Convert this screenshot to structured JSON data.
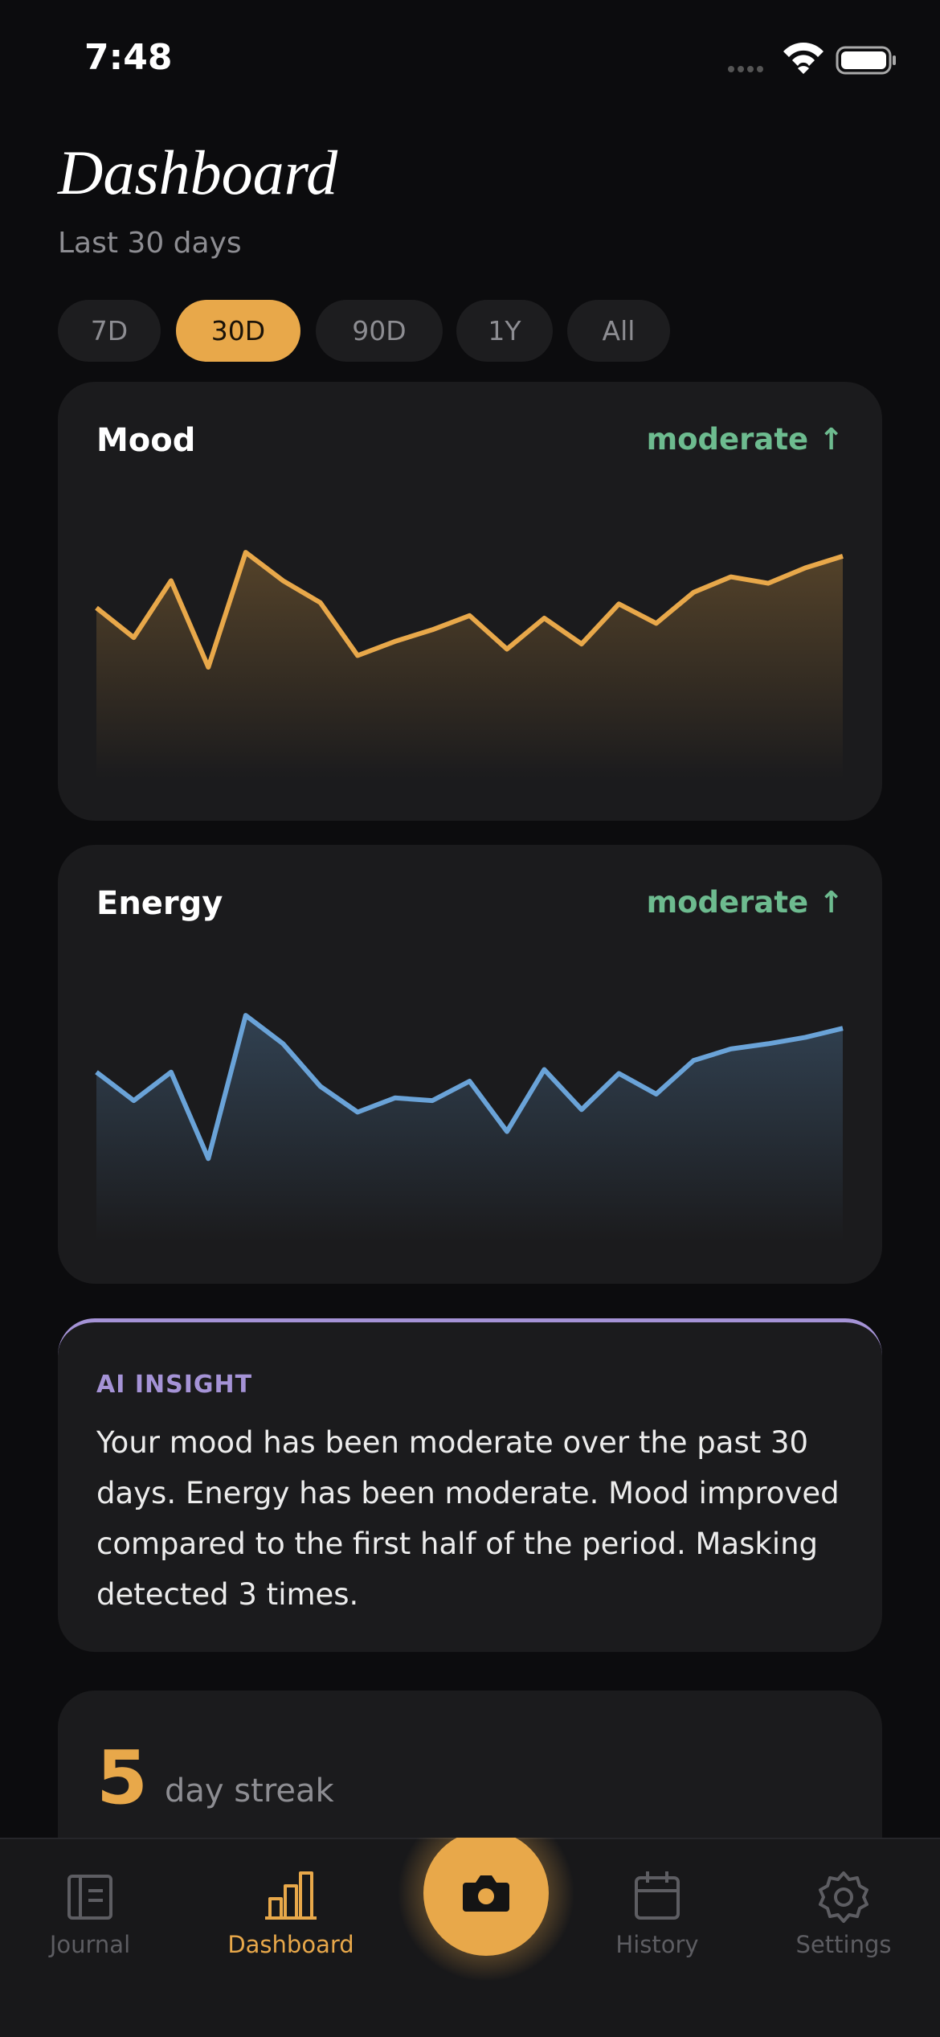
{
  "status_bar": {
    "time": "7:48"
  },
  "header": {
    "title": "Dashboard",
    "subtitle": "Last 30 days"
  },
  "range_tabs": {
    "options": [
      "7D",
      "30D",
      "90D",
      "1Y",
      "All"
    ],
    "selected": 1
  },
  "chart_data": [
    {
      "type": "area",
      "title": "Mood",
      "annotation": "moderate ↑",
      "color": "#e8a84a",
      "values": [
        6.6,
        5.45,
        7.65,
        4.3,
        8.75,
        7.65,
        6.8,
        4.75,
        5.3,
        5.75,
        6.3,
        5.0,
        6.2,
        5.2,
        6.75,
        6.0,
        7.2,
        7.8,
        7.55,
        8.15,
        8.6
      ]
    },
    {
      "type": "area",
      "title": "Energy",
      "annotation": "moderate ↑",
      "color": "#6aa3d8",
      "values": [
        6.55,
        5.45,
        6.55,
        3.2,
        8.75,
        7.65,
        6.0,
        5.0,
        5.55,
        5.45,
        6.2,
        4.25,
        6.65,
        5.1,
        6.5,
        5.7,
        7.0,
        7.45,
        7.65,
        7.9,
        8.25
      ]
    }
  ],
  "insight": {
    "label": "AI INSIGHT",
    "text": "Your mood has been moderate over the past 30 days. Energy has been moderate. Mood improved compared to the first half of the period. Masking detected 3 times."
  },
  "streak": {
    "value": "5",
    "label": "day streak"
  },
  "tab_bar": {
    "tabs": [
      "Journal",
      "Dashboard",
      "History",
      "Settings"
    ],
    "active": 1
  }
}
